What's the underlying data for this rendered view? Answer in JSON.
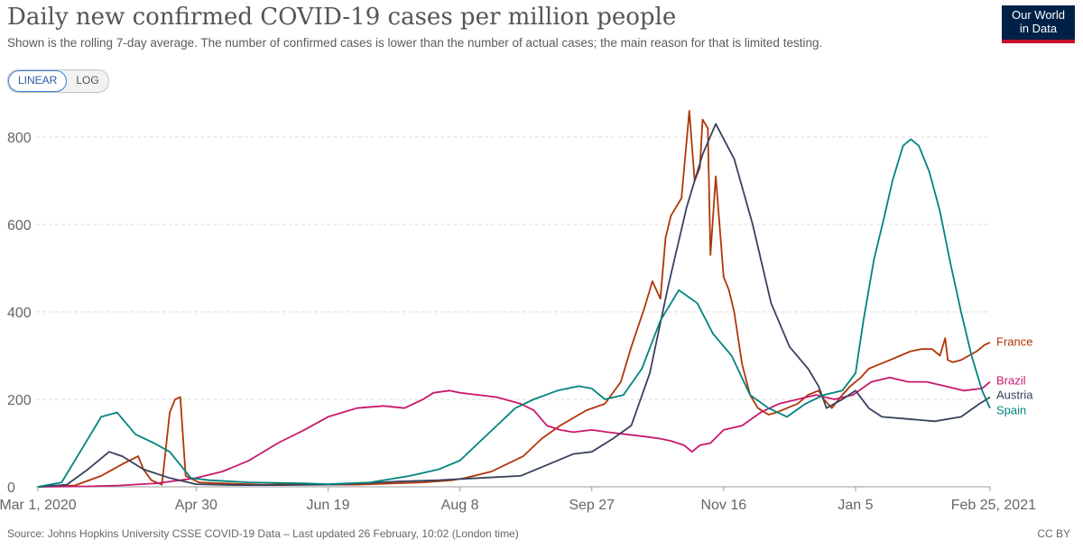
{
  "header": {
    "title": "Daily new confirmed COVID-19 cases per million people",
    "subtitle": "Shown is the rolling 7-day average. The number of confirmed cases is lower than the number of actual cases; the main reason for that is limited testing.",
    "logo_line1": "Our World",
    "logo_line2": "in Data"
  },
  "controls": {
    "linear_label": "LINEAR",
    "log_label": "LOG",
    "active": "LINEAR"
  },
  "footer": {
    "source": "Source: Johns Hopkins University CSSE COVID-19 Data – Last updated 26 February, 10:02 (London time)",
    "license": "CC BY"
  },
  "colors": {
    "France": "#b13507",
    "Brazil": "#c8196e",
    "Austria": "#38425d",
    "Spain": "#00847e"
  },
  "chart_data": {
    "type": "line",
    "title": "Daily new confirmed COVID-19 cases per million people",
    "xlabel": "",
    "ylabel": "",
    "xlim": [
      "2020-03-01",
      "2021-02-25"
    ],
    "ylim": [
      0,
      870
    ],
    "x_ticks": [
      {
        "date": "2020-03-01",
        "label": "Mar 1, 2020"
      },
      {
        "date": "2020-04-30",
        "label": "Apr 30"
      },
      {
        "date": "2020-06-19",
        "label": "Jun 19"
      },
      {
        "date": "2020-08-08",
        "label": "Aug 8"
      },
      {
        "date": "2020-09-27",
        "label": "Sep 27"
      },
      {
        "date": "2020-11-16",
        "label": "Nov 16"
      },
      {
        "date": "2021-01-05",
        "label": "Jan 5"
      },
      {
        "date": "2021-02-25",
        "label": "Feb 25, 2021"
      }
    ],
    "y_ticks": [
      0,
      200,
      400,
      600,
      800
    ],
    "grid": true,
    "legend": "end-labels-right",
    "series": [
      {
        "name": "France",
        "points": [
          [
            "2020-03-01",
            0
          ],
          [
            "2020-03-15",
            3
          ],
          [
            "2020-03-25",
            25
          ],
          [
            "2020-04-03",
            55
          ],
          [
            "2020-04-08",
            70
          ],
          [
            "2020-04-10",
            40
          ],
          [
            "2020-04-13",
            15
          ],
          [
            "2020-04-17",
            5
          ],
          [
            "2020-04-20",
            170
          ],
          [
            "2020-04-22",
            200
          ],
          [
            "2020-04-24",
            205
          ],
          [
            "2020-04-26",
            25
          ],
          [
            "2020-05-01",
            10
          ],
          [
            "2020-05-10",
            8
          ],
          [
            "2020-05-25",
            5
          ],
          [
            "2020-06-05",
            6
          ],
          [
            "2020-06-15",
            5
          ],
          [
            "2020-06-30",
            5
          ],
          [
            "2020-07-10",
            7
          ],
          [
            "2020-07-25",
            10
          ],
          [
            "2020-08-05",
            15
          ],
          [
            "2020-08-10",
            20
          ],
          [
            "2020-08-20",
            35
          ],
          [
            "2020-09-01",
            70
          ],
          [
            "2020-09-08",
            110
          ],
          [
            "2020-09-15",
            140
          ],
          [
            "2020-09-25",
            175
          ],
          [
            "2020-10-02",
            190
          ],
          [
            "2020-10-08",
            240
          ],
          [
            "2020-10-12",
            320
          ],
          [
            "2020-10-17",
            410
          ],
          [
            "2020-10-20",
            470
          ],
          [
            "2020-10-23",
            430
          ],
          [
            "2020-10-25",
            570
          ],
          [
            "2020-10-27",
            620
          ],
          [
            "2020-10-31",
            660
          ],
          [
            "2020-11-03",
            860
          ],
          [
            "2020-11-05",
            700
          ],
          [
            "2020-11-07",
            730
          ],
          [
            "2020-11-08",
            840
          ],
          [
            "2020-11-10",
            820
          ],
          [
            "2020-11-11",
            530
          ],
          [
            "2020-11-13",
            710
          ],
          [
            "2020-11-16",
            480
          ],
          [
            "2020-11-18",
            450
          ],
          [
            "2020-11-20",
            400
          ],
          [
            "2020-11-23",
            280
          ],
          [
            "2020-11-26",
            210
          ],
          [
            "2020-11-29",
            180
          ],
          [
            "2020-12-03",
            165
          ],
          [
            "2020-12-06",
            170
          ],
          [
            "2020-12-10",
            180
          ],
          [
            "2020-12-14",
            190
          ],
          [
            "2020-12-18",
            210
          ],
          [
            "2020-12-22",
            220
          ],
          [
            "2020-12-24",
            200
          ],
          [
            "2020-12-27",
            180
          ],
          [
            "2020-12-31",
            210
          ],
          [
            "2021-01-03",
            230
          ],
          [
            "2021-01-07",
            250
          ],
          [
            "2021-01-10",
            270
          ],
          [
            "2021-01-14",
            280
          ],
          [
            "2021-01-18",
            290
          ],
          [
            "2021-01-22",
            300
          ],
          [
            "2021-01-26",
            310
          ],
          [
            "2021-01-30",
            315
          ],
          [
            "2021-02-03",
            315
          ],
          [
            "2021-02-06",
            300
          ],
          [
            "2021-02-08",
            340
          ],
          [
            "2021-02-09",
            290
          ],
          [
            "2021-02-11",
            285
          ],
          [
            "2021-02-14",
            290
          ],
          [
            "2021-02-17",
            300
          ],
          [
            "2021-02-20",
            310
          ],
          [
            "2021-02-23",
            325
          ],
          [
            "2021-02-25",
            330
          ]
        ]
      },
      {
        "name": "Brazil",
        "points": [
          [
            "2020-03-01",
            0
          ],
          [
            "2020-03-20",
            1
          ],
          [
            "2020-04-01",
            3
          ],
          [
            "2020-04-15",
            8
          ],
          [
            "2020-04-30",
            20
          ],
          [
            "2020-05-10",
            35
          ],
          [
            "2020-05-20",
            60
          ],
          [
            "2020-05-31",
            100
          ],
          [
            "2020-06-10",
            130
          ],
          [
            "2020-06-19",
            160
          ],
          [
            "2020-06-30",
            180
          ],
          [
            "2020-07-10",
            185
          ],
          [
            "2020-07-18",
            180
          ],
          [
            "2020-07-25",
            200
          ],
          [
            "2020-07-29",
            215
          ],
          [
            "2020-08-04",
            220
          ],
          [
            "2020-08-08",
            215
          ],
          [
            "2020-08-15",
            210
          ],
          [
            "2020-08-22",
            205
          ],
          [
            "2020-08-31",
            190
          ],
          [
            "2020-09-05",
            175
          ],
          [
            "2020-09-10",
            140
          ],
          [
            "2020-09-15",
            130
          ],
          [
            "2020-09-20",
            125
          ],
          [
            "2020-09-27",
            130
          ],
          [
            "2020-10-03",
            125
          ],
          [
            "2020-10-10",
            120
          ],
          [
            "2020-10-17",
            115
          ],
          [
            "2020-10-23",
            110
          ],
          [
            "2020-10-27",
            105
          ],
          [
            "2020-11-01",
            95
          ],
          [
            "2020-11-04",
            80
          ],
          [
            "2020-11-07",
            95
          ],
          [
            "2020-11-11",
            100
          ],
          [
            "2020-11-16",
            130
          ],
          [
            "2020-11-23",
            140
          ],
          [
            "2020-11-30",
            170
          ],
          [
            "2020-12-07",
            190
          ],
          [
            "2020-12-14",
            200
          ],
          [
            "2020-12-21",
            210
          ],
          [
            "2020-12-28",
            200
          ],
          [
            "2021-01-04",
            210
          ],
          [
            "2021-01-11",
            240
          ],
          [
            "2021-01-18",
            250
          ],
          [
            "2021-01-25",
            240
          ],
          [
            "2021-02-01",
            240
          ],
          [
            "2021-02-08",
            230
          ],
          [
            "2021-02-15",
            220
          ],
          [
            "2021-02-22",
            225
          ],
          [
            "2021-02-25",
            240
          ]
        ]
      },
      {
        "name": "Austria",
        "points": [
          [
            "2020-03-01",
            0
          ],
          [
            "2020-03-12",
            5
          ],
          [
            "2020-03-20",
            40
          ],
          [
            "2020-03-28",
            80
          ],
          [
            "2020-04-02",
            70
          ],
          [
            "2020-04-10",
            40
          ],
          [
            "2020-04-20",
            20
          ],
          [
            "2020-04-30",
            6
          ],
          [
            "2020-05-15",
            4
          ],
          [
            "2020-06-01",
            4
          ],
          [
            "2020-06-19",
            5
          ],
          [
            "2020-07-01",
            8
          ],
          [
            "2020-07-15",
            12
          ],
          [
            "2020-07-31",
            15
          ],
          [
            "2020-08-15",
            20
          ],
          [
            "2020-08-31",
            25
          ],
          [
            "2020-09-10",
            50
          ],
          [
            "2020-09-20",
            75
          ],
          [
            "2020-09-27",
            80
          ],
          [
            "2020-10-05",
            110
          ],
          [
            "2020-10-12",
            140
          ],
          [
            "2020-10-19",
            260
          ],
          [
            "2020-10-26",
            460
          ],
          [
            "2020-11-02",
            640
          ],
          [
            "2020-11-08",
            760
          ],
          [
            "2020-11-13",
            830
          ],
          [
            "2020-11-20",
            750
          ],
          [
            "2020-11-27",
            600
          ],
          [
            "2020-12-04",
            420
          ],
          [
            "2020-12-11",
            320
          ],
          [
            "2020-12-18",
            270
          ],
          [
            "2020-12-22",
            230
          ],
          [
            "2020-12-25",
            180
          ],
          [
            "2020-12-31",
            200
          ],
          [
            "2021-01-05",
            220
          ],
          [
            "2021-01-10",
            180
          ],
          [
            "2021-01-15",
            160
          ],
          [
            "2021-01-25",
            155
          ],
          [
            "2021-02-04",
            150
          ],
          [
            "2021-02-14",
            160
          ],
          [
            "2021-02-21",
            190
          ],
          [
            "2021-02-25",
            205
          ]
        ]
      },
      {
        "name": "Spain",
        "points": [
          [
            "2020-03-01",
            0
          ],
          [
            "2020-03-10",
            10
          ],
          [
            "2020-03-17",
            80
          ],
          [
            "2020-03-25",
            160
          ],
          [
            "2020-03-31",
            170
          ],
          [
            "2020-04-07",
            120
          ],
          [
            "2020-04-14",
            100
          ],
          [
            "2020-04-20",
            80
          ],
          [
            "2020-04-28",
            20
          ],
          [
            "2020-05-05",
            15
          ],
          [
            "2020-05-20",
            10
          ],
          [
            "2020-06-10",
            8
          ],
          [
            "2020-06-19",
            6
          ],
          [
            "2020-07-05",
            10
          ],
          [
            "2020-07-20",
            25
          ],
          [
            "2020-07-31",
            40
          ],
          [
            "2020-08-08",
            60
          ],
          [
            "2020-08-15",
            100
          ],
          [
            "2020-08-22",
            140
          ],
          [
            "2020-08-29",
            180
          ],
          [
            "2020-09-05",
            200
          ],
          [
            "2020-09-14",
            220
          ],
          [
            "2020-09-22",
            230
          ],
          [
            "2020-09-27",
            225
          ],
          [
            "2020-10-02",
            200
          ],
          [
            "2020-10-09",
            210
          ],
          [
            "2020-10-16",
            270
          ],
          [
            "2020-10-23",
            380
          ],
          [
            "2020-10-30",
            450
          ],
          [
            "2020-11-06",
            420
          ],
          [
            "2020-11-12",
            350
          ],
          [
            "2020-11-19",
            300
          ],
          [
            "2020-11-26",
            210
          ],
          [
            "2020-12-03",
            180
          ],
          [
            "2020-12-10",
            160
          ],
          [
            "2020-12-17",
            190
          ],
          [
            "2020-12-24",
            210
          ],
          [
            "2020-12-31",
            220
          ],
          [
            "2021-01-05",
            260
          ],
          [
            "2021-01-08",
            380
          ],
          [
            "2021-01-12",
            520
          ],
          [
            "2021-01-16",
            620
          ],
          [
            "2021-01-19",
            700
          ],
          [
            "2021-01-23",
            780
          ],
          [
            "2021-01-26",
            795
          ],
          [
            "2021-01-29",
            780
          ],
          [
            "2021-02-02",
            720
          ],
          [
            "2021-02-06",
            630
          ],
          [
            "2021-02-10",
            510
          ],
          [
            "2021-02-14",
            400
          ],
          [
            "2021-02-18",
            300
          ],
          [
            "2021-02-22",
            220
          ],
          [
            "2021-02-25",
            180
          ]
        ]
      }
    ]
  }
}
